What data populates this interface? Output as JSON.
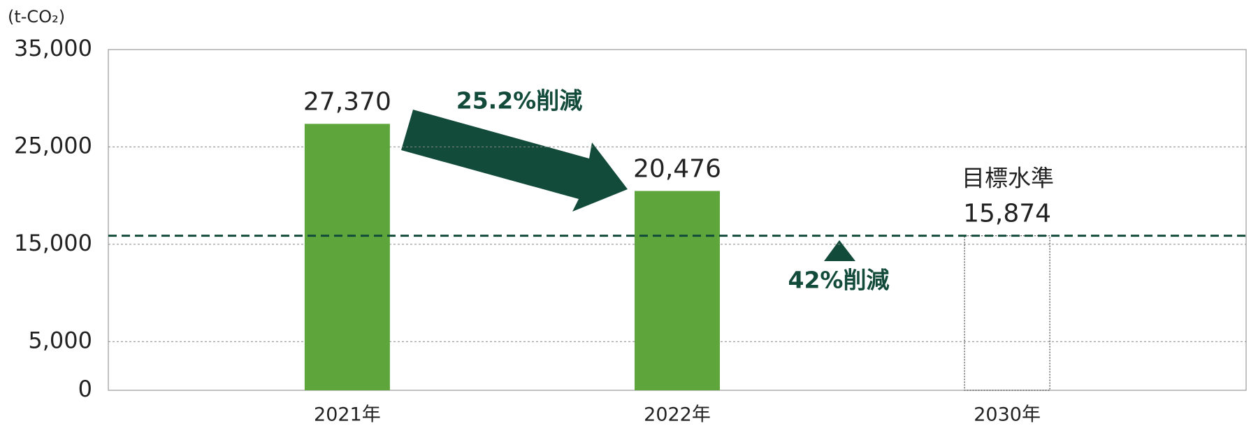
{
  "chart_data": {
    "type": "bar",
    "y_label": "(t-CO₂)",
    "categories": [
      "2021年",
      "2022年",
      "2030年"
    ],
    "values": [
      27370,
      20476,
      15874
    ],
    "value_labels": [
      "27,370",
      "20,476",
      "15,874"
    ],
    "bar_styles": [
      "solid",
      "solid",
      "outline"
    ],
    "color": "#5ea63b",
    "target_color": "#134b3a",
    "ylim": [
      0,
      35000
    ],
    "yticks": [
      0,
      {
        "value": 5000,
        "label": "5,000"
      },
      {
        "value": 15000,
        "label": "15,000"
      },
      {
        "value": 25000,
        "label": "25,000"
      },
      {
        "value": 35000,
        "label": "35,000"
      }
    ],
    "grid": true,
    "annotations": [
      "25.2%削減",
      "42%削減",
      "目標水準"
    ]
  }
}
